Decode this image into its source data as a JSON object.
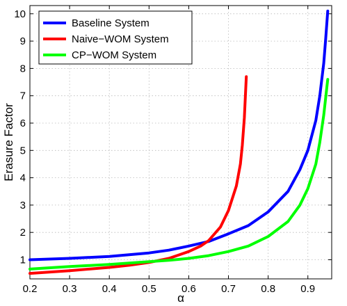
{
  "chart_data": {
    "type": "line",
    "xlabel": "α",
    "ylabel": "Erasure Factor",
    "xlim": [
      0.2,
      0.96
    ],
    "ylim": [
      0.3,
      10.3
    ],
    "xticks": [
      0.2,
      0.3,
      0.4,
      0.5,
      0.6,
      0.7,
      0.8,
      0.9
    ],
    "yticks": [
      1,
      2,
      3,
      4,
      5,
      6,
      7,
      8,
      9,
      10
    ],
    "xtick_labels": [
      "0.2",
      "0.3",
      "0.4",
      "0.5",
      "0.6",
      "0.7",
      "0.8",
      "0.9"
    ],
    "ytick_labels": [
      "1",
      "2",
      "3",
      "4",
      "5",
      "6",
      "7",
      "8",
      "9",
      "10"
    ],
    "grid": true,
    "legend_position": "top-left",
    "series": [
      {
        "name": "Baseline System",
        "color": "#0000ff",
        "x": [
          0.2,
          0.3,
          0.4,
          0.5,
          0.55,
          0.6,
          0.65,
          0.7,
          0.75,
          0.8,
          0.85,
          0.88,
          0.9,
          0.92,
          0.93,
          0.94,
          0.945,
          0.95
        ],
        "y": [
          1.0,
          1.05,
          1.12,
          1.25,
          1.35,
          1.5,
          1.67,
          1.95,
          2.25,
          2.75,
          3.5,
          4.3,
          5.0,
          6.1,
          7.0,
          8.2,
          9.1,
          10.1
        ]
      },
      {
        "name": "Naive−WOM System",
        "color": "#ff0000",
        "x": [
          0.2,
          0.3,
          0.4,
          0.45,
          0.5,
          0.55,
          0.6,
          0.63,
          0.65,
          0.68,
          0.7,
          0.72,
          0.73,
          0.735,
          0.74,
          0.745
        ],
        "y": [
          0.5,
          0.6,
          0.72,
          0.8,
          0.9,
          1.05,
          1.3,
          1.5,
          1.7,
          2.2,
          2.8,
          3.7,
          4.5,
          5.2,
          6.2,
          7.7
        ]
      },
      {
        "name": "CP−WOM System",
        "color": "#00ff00",
        "x": [
          0.2,
          0.3,
          0.4,
          0.5,
          0.55,
          0.6,
          0.65,
          0.7,
          0.75,
          0.8,
          0.85,
          0.88,
          0.9,
          0.92,
          0.93,
          0.94,
          0.95
        ],
        "y": [
          0.66,
          0.75,
          0.83,
          0.93,
          0.98,
          1.05,
          1.15,
          1.3,
          1.5,
          1.85,
          2.4,
          3.0,
          3.6,
          4.5,
          5.3,
          6.3,
          7.6
        ]
      }
    ]
  }
}
